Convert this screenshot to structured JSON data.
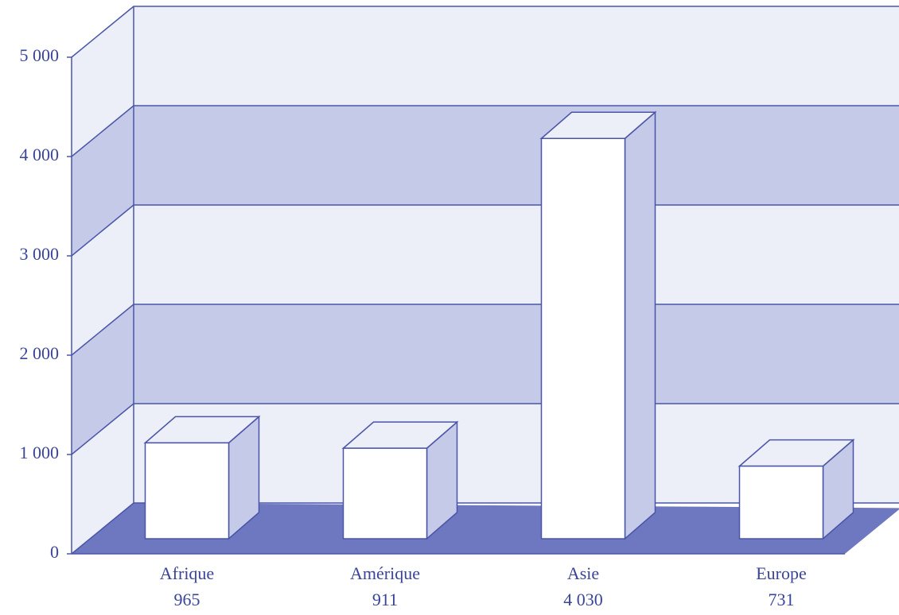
{
  "chart_data": {
    "type": "bar3d",
    "categories": [
      "Afrique",
      "Amérique",
      "Asie",
      "Europe"
    ],
    "values": [
      965,
      911,
      4030,
      731
    ],
    "value_labels": [
      "965",
      "911",
      "4 030",
      "731"
    ],
    "ylim": [
      0,
      5000
    ],
    "yticks": [
      0,
      {
        "value": 1000,
        "label": "1 000"
      },
      {
        "value": 2000,
        "label": "2 000"
      },
      {
        "value": 3000,
        "label": "3 000"
      },
      {
        "value": 4000,
        "label": "4 000"
      },
      {
        "value": 5000,
        "label": "5 000"
      }
    ],
    "color": "#ffffff",
    "grid": true
  }
}
